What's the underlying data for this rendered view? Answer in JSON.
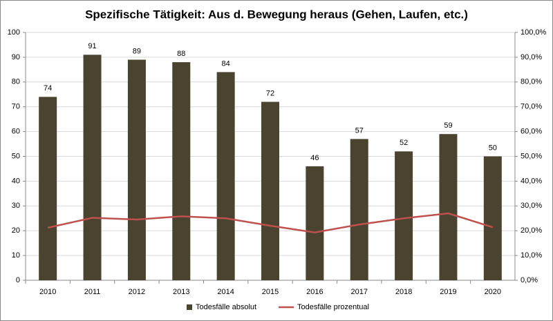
{
  "chart_data": {
    "type": "bar",
    "title": "Spezifische Tätigkeit: Aus d. Bewegung heraus (Gehen, Laufen, etc.)",
    "categories": [
      "2010",
      "2011",
      "2012",
      "2013",
      "2014",
      "2015",
      "2016",
      "2017",
      "2018",
      "2019",
      "2020"
    ],
    "series": [
      {
        "name": "Todesfälle absolut",
        "type": "bar",
        "color": "#4a4330",
        "values": [
          74,
          91,
          89,
          88,
          84,
          72,
          46,
          57,
          52,
          59,
          50
        ]
      },
      {
        "name": "Todesfälle prozentual",
        "type": "line",
        "axis": "y2",
        "color": "#c0504d",
        "values": [
          21.2,
          25.2,
          24.5,
          25.8,
          25.0,
          22.0,
          19.3,
          22.5,
          25.0,
          27.0,
          21.4
        ]
      }
    ],
    "ylim": [
      0,
      100
    ],
    "yticks": [
      0,
      10,
      20,
      30,
      40,
      50,
      60,
      70,
      80,
      90,
      100
    ],
    "y2lim": [
      0,
      100
    ],
    "y2ticks": [
      {
        "value": 0,
        "label": "0,0%"
      },
      {
        "value": 10,
        "label": "10,0%"
      },
      {
        "value": 20,
        "label": "20,0%"
      },
      {
        "value": 30,
        "label": "30,0%"
      },
      {
        "value": 40,
        "label": "40,0%"
      },
      {
        "value": 50,
        "label": "50,0%"
      },
      {
        "value": 60,
        "label": "60,0%"
      },
      {
        "value": 70,
        "label": "70,0%"
      },
      {
        "value": 80,
        "label": "80,0%"
      },
      {
        "value": 90,
        "label": "90,0%"
      },
      {
        "value": 100,
        "label": "100,0%"
      }
    ],
    "grid": true,
    "legend": "bottom"
  }
}
